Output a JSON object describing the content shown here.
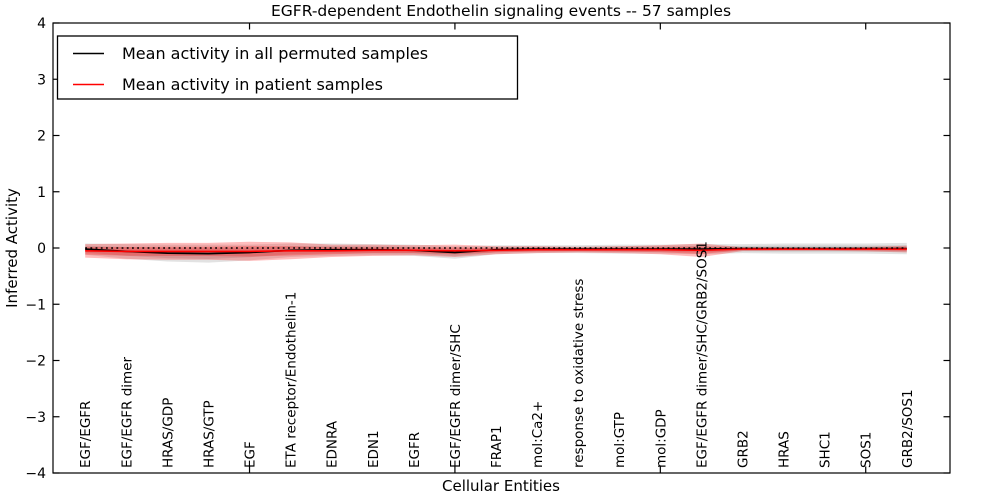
{
  "title": "EGFR-dependent Endothelin signaling events -- 57 samples",
  "axes": {
    "ylabel": "Inferred Activity",
    "xlabel": "Cellular Entities",
    "ytick_labels": [
      "4",
      "3",
      "2",
      "1",
      "0",
      "−1",
      "−2",
      "−3",
      "−4"
    ],
    "ytick_values": [
      4,
      3,
      2,
      1,
      0,
      -1,
      -2,
      -3,
      -4
    ]
  },
  "legend": {
    "items": [
      {
        "label": "Mean activity in all permuted samples",
        "color": "#000000"
      },
      {
        "label": "Mean activity in patient samples",
        "color": "#ff0000"
      }
    ]
  },
  "colors": {
    "permuted_line": "#000000",
    "patient_line": "#ff0000",
    "patient_band": "rgba(255,0,0,0.26)",
    "permuted_band": "rgba(110,110,110,0.20)",
    "zero_line": "#000000",
    "frame": "#000000",
    "background": "#ffffff"
  },
  "chart_data": {
    "type": "line",
    "title": "EGFR-dependent Endothelin signaling events -- 57 samples",
    "xlabel": "Cellular Entities",
    "ylabel": "Inferred Activity",
    "ylim": [
      -4,
      4
    ],
    "yticks": [
      -4,
      -3,
      -2,
      -1,
      0,
      1,
      2,
      3,
      4
    ],
    "xticks_at_category_number": [
      5,
      10,
      15,
      20
    ],
    "grid": false,
    "legend_position": "upper left",
    "zero_reference_line": {
      "y": 0,
      "style": "dotted",
      "color": "#000000"
    },
    "categories": [
      "EGF/EGFR",
      "EGF/EGFR dimer",
      "HRAS/GDP",
      "HRAS/GTP",
      "EGF",
      "ETA receptor/Endothelin-1",
      "EDNRA",
      "EDN1",
      "EGFR",
      "EGF/EGFR dimer/SHC",
      "FRAP1",
      "mol:Ca2+",
      "response to oxidative stress",
      "mol:GTP",
      "mol:GDP",
      "EGF/EGFR dimer/SHC/GRB2/SOS1",
      "GRB2",
      "HRAS",
      "SHC1",
      "SOS1",
      "GRB2/SOS1"
    ],
    "series": [
      {
        "name": "Mean activity in all permuted samples",
        "style": "solid",
        "color": "#000000",
        "values": [
          -0.02,
          -0.06,
          -0.09,
          -0.1,
          -0.08,
          -0.04,
          -0.03,
          -0.03,
          -0.04,
          -0.08,
          -0.03,
          -0.02,
          -0.02,
          -0.02,
          -0.02,
          -0.02,
          -0.01,
          -0.01,
          -0.01,
          -0.01,
          -0.01
        ],
        "band_half_width": [
          0.1,
          0.13,
          0.15,
          0.16,
          0.14,
          0.12,
          0.11,
          0.1,
          0.1,
          0.11,
          0.08,
          0.07,
          0.07,
          0.08,
          0.08,
          0.09,
          0.08,
          0.09,
          0.09,
          0.09,
          0.1
        ]
      },
      {
        "name": "Mean activity in patient samples",
        "style": "solid",
        "color": "#ff0000",
        "values": [
          -0.05,
          -0.06,
          -0.06,
          -0.06,
          -0.06,
          -0.05,
          -0.05,
          -0.04,
          -0.04,
          -0.05,
          -0.04,
          -0.03,
          -0.03,
          -0.03,
          -0.03,
          -0.04,
          -0.02,
          -0.02,
          -0.02,
          -0.02,
          -0.02
        ],
        "band_half_width": [
          0.12,
          0.14,
          0.15,
          0.15,
          0.17,
          0.15,
          0.11,
          0.1,
          0.09,
          0.11,
          0.07,
          0.06,
          0.05,
          0.06,
          0.08,
          0.12,
          0.035,
          0.03,
          0.03,
          0.04,
          0.06
        ]
      }
    ]
  }
}
